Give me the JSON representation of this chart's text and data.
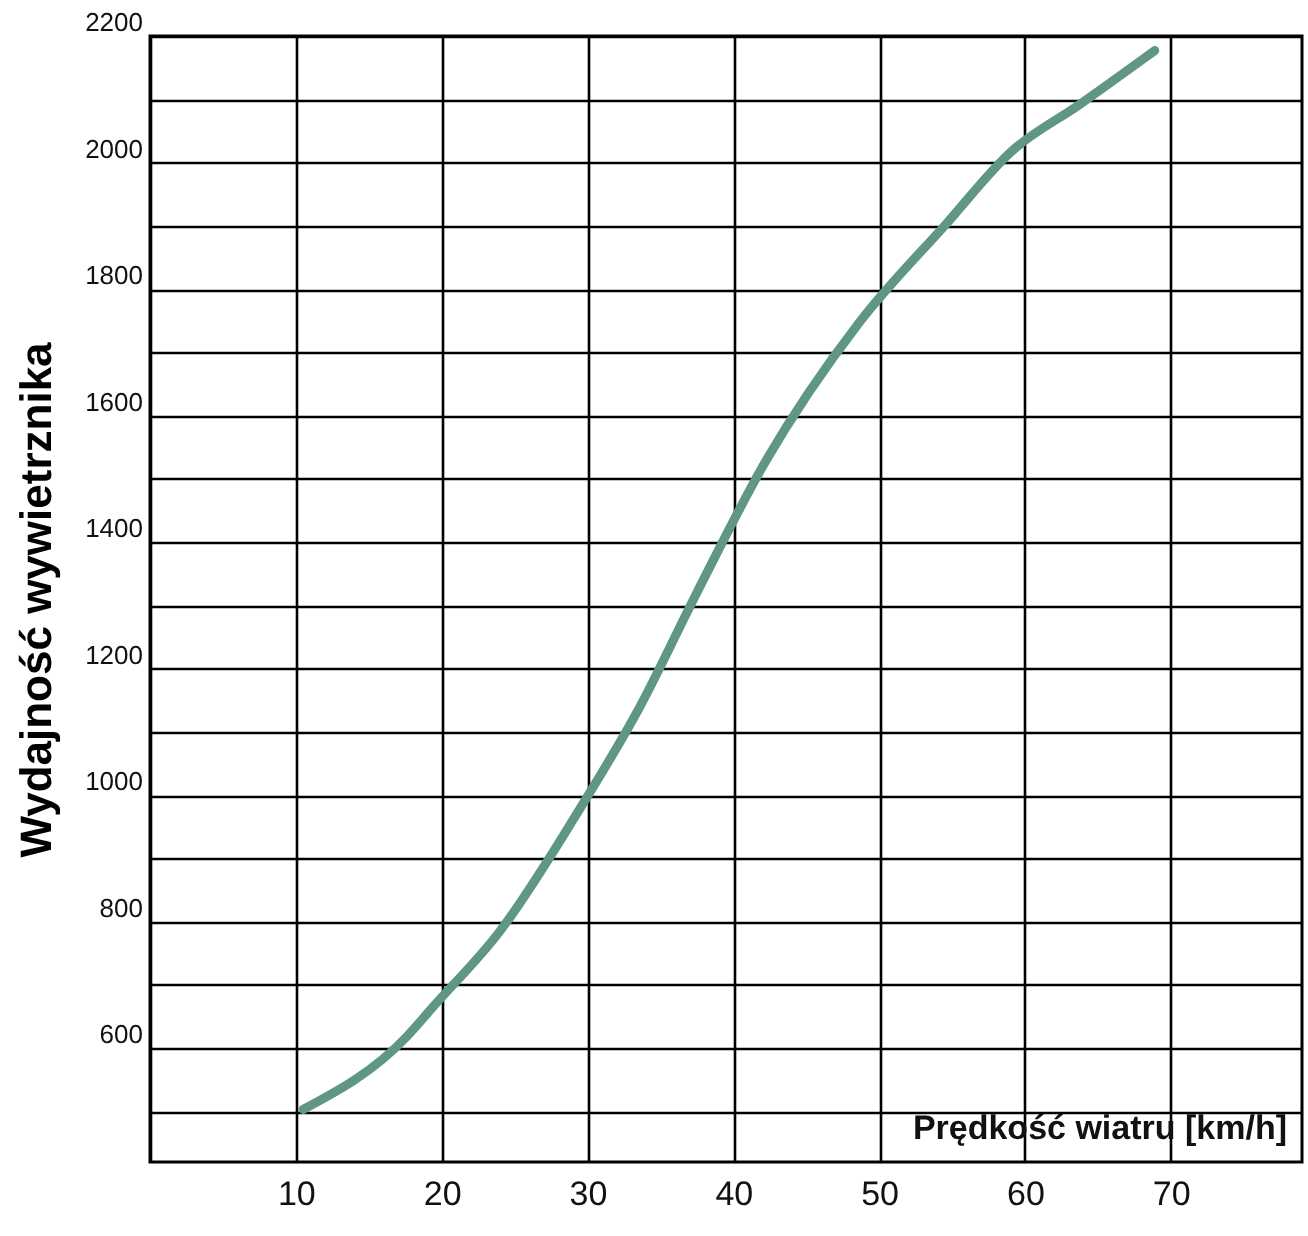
{
  "chart_data": {
    "type": "line",
    "xlabel": "Prędkość wiatru  [km/h]",
    "ylabel": "Wydajność wywietrznika",
    "x": [
      10.5,
      17.6,
      19.4,
      24,
      29.2,
      33.6,
      37.5,
      42.2,
      48.6,
      54.6,
      59.1,
      63.7,
      68.9
    ],
    "series": [
      {
        "color": "#5f9685",
        "values": [
          503,
          618,
          665,
          785,
          968,
          1140,
          1320,
          1527,
          1746,
          1903,
          2018,
          2091,
          2177
        ]
      }
    ],
    "xlim": [
      0,
      79
    ],
    "xticks": [
      {
        "value": 0,
        "label": null
      },
      10,
      20,
      30,
      40,
      50,
      60,
      70
    ],
    "ylim": [
      420,
      2200
    ],
    "yticks": [
      {
        "value": 500,
        "label": null
      },
      600,
      {
        "value": 700,
        "label": null
      },
      800,
      {
        "value": 900,
        "label": null
      },
      1000,
      {
        "value": 1100,
        "label": null
      },
      1200,
      {
        "value": 1300,
        "label": null
      },
      1400,
      {
        "value": 1500,
        "label": null
      },
      1600,
      {
        "value": 1700,
        "label": null
      },
      1800,
      {
        "value": 1900,
        "label": null
      },
      2000,
      {
        "value": 2100,
        "label": null
      },
      2200
    ],
    "grid": true
  }
}
